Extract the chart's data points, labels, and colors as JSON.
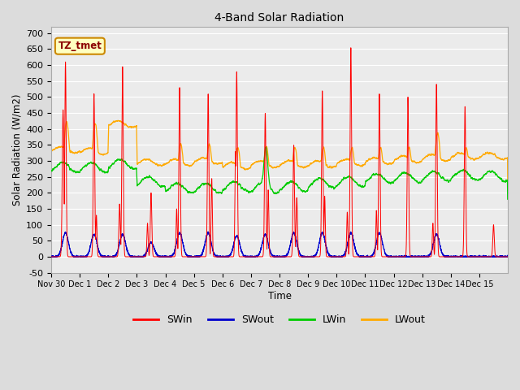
{
  "title": "4-Band Solar Radiation",
  "ylabel": "Solar Radiation (W/m2)",
  "xlabel": "Time",
  "annotation": "TZ_tmet",
  "ylim": [
    -50,
    720
  ],
  "yticks": [
    -50,
    0,
    50,
    100,
    150,
    200,
    250,
    300,
    350,
    400,
    450,
    500,
    550,
    600,
    650,
    700
  ],
  "colors": {
    "SWin": "#ff0000",
    "SWout": "#0000cd",
    "LWin": "#00cc00",
    "LWout": "#ffaa00"
  },
  "background_color": "#dcdcdc",
  "plot_bg_color": "#ebebeb",
  "n_days": 16,
  "x_tick_labels": [
    "Nov 30",
    "Dec 1",
    "Dec 2",
    "Dec 3",
    "Dec 4",
    "Dec 5",
    "Dec 6",
    "Dec 7",
    "Dec 8",
    "Dec 9",
    "Dec 10",
    "Dec 11",
    "Dec 12",
    "Dec 13",
    "Dec 14",
    "Dec 15"
  ],
  "SWin_peaks": [
    610,
    510,
    595,
    200,
    530,
    510,
    580,
    450,
    350,
    520,
    655,
    510,
    500,
    540,
    470,
    100
  ],
  "SWin_side_peaks": [
    460,
    130,
    165,
    105,
    150,
    245,
    330,
    210,
    185,
    190,
    140,
    145,
    0,
    105,
    0,
    0
  ],
  "SWout_peaks": [
    75,
    70,
    70,
    45,
    75,
    75,
    65,
    70,
    75,
    75,
    75,
    75,
    0,
    70,
    0,
    0
  ],
  "LWout_base": [
    335,
    330,
    415,
    295,
    295,
    300,
    285,
    290,
    290,
    290,
    295,
    300,
    305,
    310,
    315,
    315
  ],
  "LWout_hump": [
    420,
    415,
    370,
    295,
    350,
    350,
    340,
    340,
    340,
    340,
    340,
    340,
    340,
    385,
    340,
    320
  ],
  "LWin_base": [
    280,
    280,
    290,
    235,
    215,
    215,
    220,
    215,
    220,
    230,
    235,
    245,
    248,
    252,
    255,
    252
  ]
}
